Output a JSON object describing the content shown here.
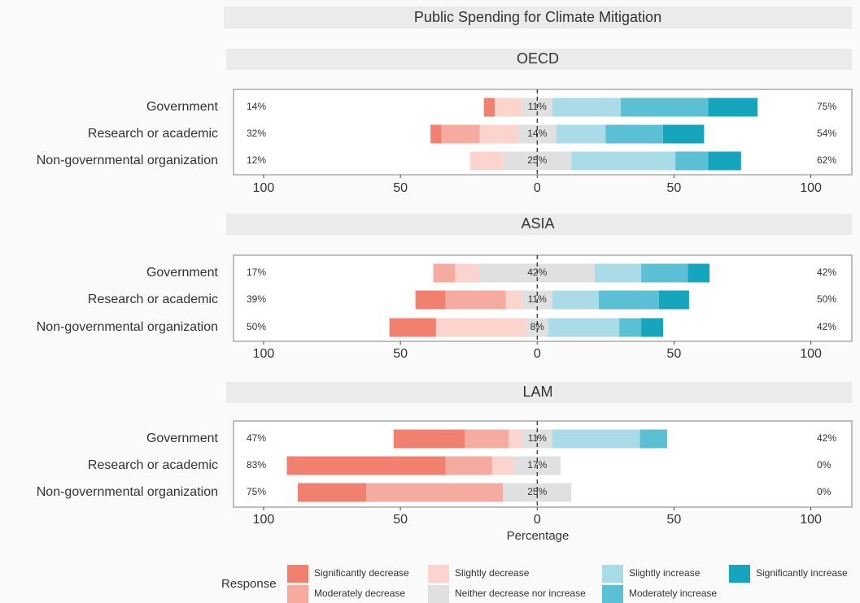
{
  "chart_data": {
    "type": "bar",
    "title": "Public Spending for Climate Mitigation",
    "x_label": "Percentage",
    "legend_title": "Response",
    "xlim": [
      -111,
      115
    ],
    "xticks": [
      {
        "value": -100,
        "label": "100"
      },
      {
        "value": -50,
        "label": "50"
      },
      0,
      50,
      100
    ],
    "legend": [
      {
        "name": "Significantly decrease",
        "color": "#f1806f"
      },
      {
        "name": "Moderately decrease",
        "color": "#f6aba1"
      },
      {
        "name": "Slightly decrease",
        "color": "#fbd4ce"
      },
      {
        "name": "Neither decrease nor increase",
        "color": "#e0e0e0"
      },
      {
        "name": "Slightly increase",
        "color": "#a9dce7"
      },
      {
        "name": "Moderately increase",
        "color": "#5cc0d5"
      },
      {
        "name": "Significantly increase",
        "color": "#15a6bd"
      }
    ],
    "panels": [
      {
        "name": "OECD",
        "categories": [
          "Government",
          "Research or academic",
          "Non-governmental organization"
        ],
        "series": [
          {
            "values": [
              4,
              4,
              0
            ]
          },
          {
            "values": [
              0,
              14,
              0
            ]
          },
          {
            "values": [
              10,
              14,
              12
            ]
          },
          {
            "values": [
              11,
              14,
              25
            ],
            "value_labels": [
              "11%",
              "14%",
              "25%"
            ]
          },
          {
            "values": [
              25,
              18,
              38
            ]
          },
          {
            "values": [
              32,
              21,
              12
            ]
          },
          {
            "values": [
              18,
              15,
              12
            ]
          }
        ],
        "left_totals": {
          "values": [
            14,
            32,
            12
          ],
          "value_labels": [
            "14%",
            "32%",
            "12%"
          ]
        },
        "right_totals": {
          "values": [
            75,
            54,
            62
          ],
          "value_labels": [
            "75%",
            "54%",
            "62%"
          ]
        }
      },
      {
        "name": "ASIA",
        "categories": [
          "Government",
          "Research or academic",
          "Non-governmental organization"
        ],
        "series": [
          {
            "values": [
              0,
              11,
              17
            ]
          },
          {
            "values": [
              8,
              22,
              0
            ]
          },
          {
            "values": [
              9,
              6,
              33
            ]
          },
          {
            "values": [
              42,
              11,
              8
            ],
            "value_labels": [
              "42%",
              "11%",
              "8%"
            ]
          },
          {
            "values": [
              17,
              17,
              26
            ]
          },
          {
            "values": [
              17,
              22,
              8
            ]
          },
          {
            "values": [
              8,
              11,
              8
            ]
          }
        ],
        "left_totals": {
          "values": [
            17,
            39,
            50
          ],
          "value_labels": [
            "17%",
            "39%",
            "50%"
          ]
        },
        "right_totals": {
          "values": [
            42,
            50,
            42
          ],
          "value_labels": [
            "42%",
            "50%",
            "42%"
          ]
        }
      },
      {
        "name": "LAM",
        "categories": [
          "Government",
          "Research or academic",
          "Non-governmental organization"
        ],
        "series": [
          {
            "values": [
              26,
              58,
              25
            ]
          },
          {
            "values": [
              16,
              17,
              50
            ]
          },
          {
            "values": [
              5,
              8,
              0
            ]
          },
          {
            "values": [
              11,
              17,
              25
            ],
            "value_labels": [
              "11%",
              "17%",
              "25%"
            ]
          },
          {
            "values": [
              32,
              0,
              0
            ]
          },
          {
            "values": [
              10,
              0,
              0
            ]
          },
          {
            "values": [
              0,
              0,
              0
            ]
          }
        ],
        "left_totals": {
          "values": [
            47,
            83,
            75
          ],
          "value_labels": [
            "47%",
            "83%",
            "75%"
          ]
        },
        "right_totals": {
          "values": [
            42,
            0,
            0
          ],
          "value_labels": [
            "42%",
            "0%",
            "0%"
          ]
        }
      }
    ]
  }
}
